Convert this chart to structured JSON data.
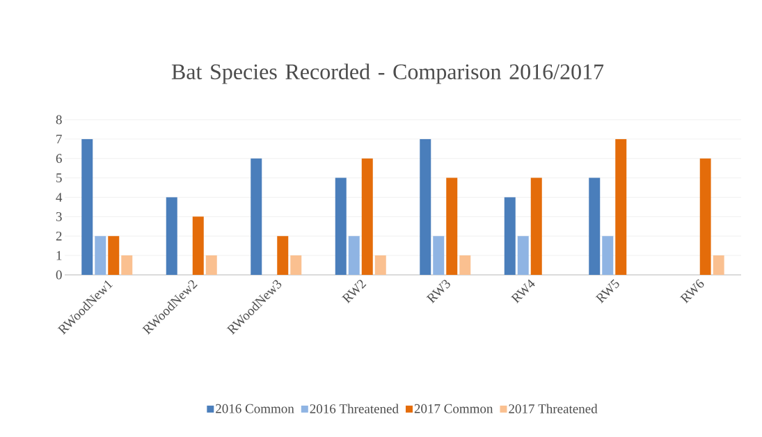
{
  "chart_data": {
    "type": "bar",
    "title": "Bat Species Recorded - Comparison 2016/2017",
    "categories": [
      "RWoodNew1",
      "RWoodNew2",
      "RWoodNew3",
      "RW2",
      "RW3",
      "RW4",
      "RW5",
      "RW6"
    ],
    "series": [
      {
        "name": "2016 Common",
        "color": "#4a7ebb",
        "values": [
          7,
          4,
          6,
          5,
          7,
          4,
          5,
          0
        ]
      },
      {
        "name": "2016 Threatened",
        "color": "#8fb4e3",
        "values": [
          2,
          0,
          0,
          2,
          2,
          2,
          2,
          0
        ]
      },
      {
        "name": "2017 Common",
        "color": "#e46c0a",
        "values": [
          2,
          3,
          2,
          6,
          5,
          5,
          7,
          6
        ]
      },
      {
        "name": "2017 Threatened",
        "color": "#fac090",
        "values": [
          1,
          1,
          1,
          1,
          1,
          0,
          0,
          1
        ]
      }
    ],
    "ylim": [
      0,
      8
    ],
    "yticks": [
      0,
      1,
      2,
      3,
      4,
      5,
      6,
      7,
      8
    ],
    "grid": "y",
    "legend": "bottom"
  }
}
